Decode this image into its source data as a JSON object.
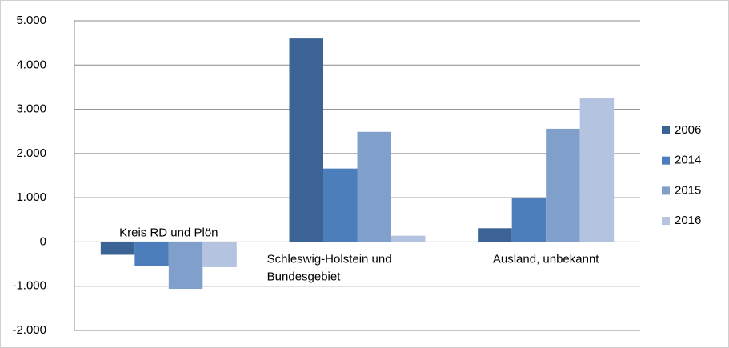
{
  "chart_data": {
    "type": "bar",
    "categories": [
      "Kreis RD und Plön",
      "Schleswig-Holstein und Bundesgebiet",
      "Ausland, unbekannt"
    ],
    "series": [
      {
        "name": "2006",
        "color": "#3b6395",
        "values": [
          -290,
          4600,
          310
        ]
      },
      {
        "name": "2014",
        "color": "#4b7ebb",
        "values": [
          -540,
          1660,
          1000
        ]
      },
      {
        "name": "2015",
        "color": "#809fcb",
        "values": [
          -1060,
          2490,
          2560
        ]
      },
      {
        "name": "2016",
        "color": "#b4c3df",
        "values": [
          -570,
          140,
          3250
        ]
      }
    ],
    "ylim": [
      -2000,
      5000
    ],
    "yticks": [
      {
        "value": -2000,
        "label": "-2.000"
      },
      {
        "value": -1000,
        "label": "-1.000"
      },
      0,
      {
        "value": 1000,
        "label": "1.000"
      },
      {
        "value": 2000,
        "label": "2.000"
      },
      {
        "value": 3000,
        "label": "3.000"
      },
      {
        "value": 4000,
        "label": "4.000"
      },
      {
        "value": 5000,
        "label": "5.000"
      }
    ],
    "grid": true,
    "legend": "right"
  }
}
